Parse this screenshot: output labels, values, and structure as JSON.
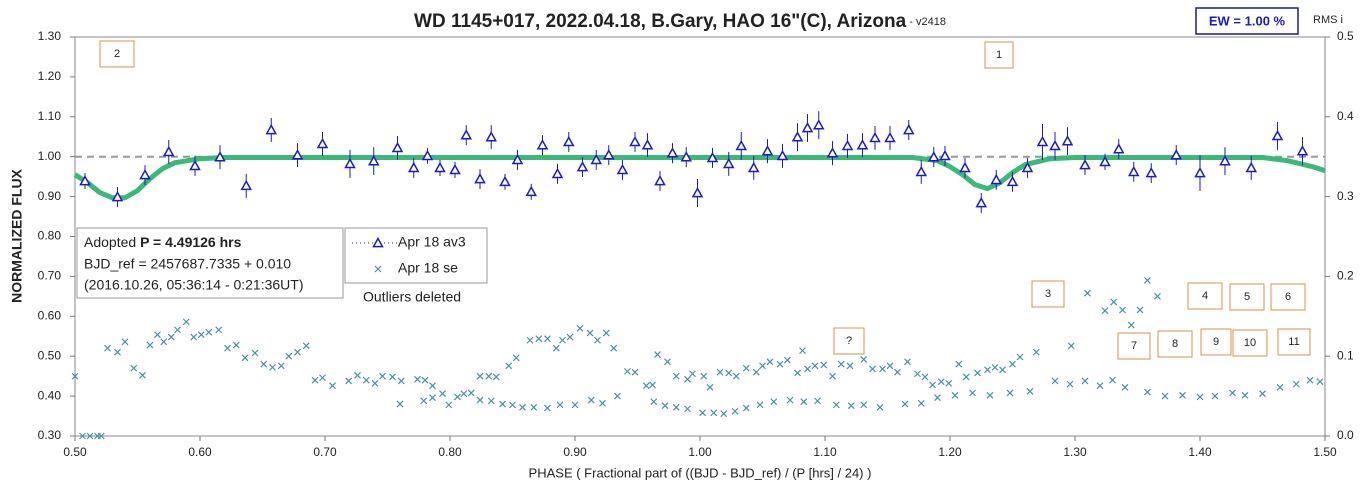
{
  "chart_data": {
    "type": "scatter",
    "title": "WD 1145+017, 2022.04.18, B.Gary, HAO 16\"(C), Arizona",
    "title_suffix": " - v2418",
    "ew_label": "EW = 1.00 %",
    "y2_title": "RMS i",
    "ylabel": "NORMALIZED FLUX",
    "xlabel": "PHASE ( Fractional part of ((BJD - BJD_ref) / (P [hrs] / 24) )",
    "info_lines": {
      "prefix": "Adopted ",
      "period": "P = 4.49126 hrs",
      "line2": "BJD_ref = 2457687.7335 + 0.010",
      "line3": "(2016.10.26, 05:36:14 - 0:21:36UT)"
    },
    "note": "Outliers deleted",
    "annotations": [
      "2",
      "1",
      "3",
      "4",
      "5",
      "6",
      "7",
      "8",
      "9",
      "10",
      "11",
      "?"
    ],
    "xlim": [
      0.5,
      1.5
    ],
    "xticks": [
      {
        "value": 0.5,
        "label": "0.50"
      },
      {
        "value": 0.6,
        "label": "0.60"
      },
      {
        "value": 0.7,
        "label": "0.70"
      },
      {
        "value": 0.8,
        "label": "0.80"
      },
      {
        "value": 0.9,
        "label": "0.90"
      },
      {
        "value": 1.0,
        "label": "1.00"
      },
      {
        "value": 1.1,
        "label": "1.10"
      },
      {
        "value": 1.2,
        "label": "1.20"
      },
      {
        "value": 1.3,
        "label": "1.30"
      },
      {
        "value": 1.4,
        "label": "1.40"
      },
      {
        "value": 1.5,
        "label": "1.50"
      }
    ],
    "ylim": [
      0.3,
      1.3
    ],
    "yticks": [
      {
        "value": 0.3,
        "label": "0.30"
      },
      {
        "value": 0.4,
        "label": "0.40"
      },
      {
        "value": 0.5,
        "label": "0.50"
      },
      {
        "value": 0.6,
        "label": "0.60"
      },
      {
        "value": 0.7,
        "label": "0.70"
      },
      {
        "value": 0.8,
        "label": "0.80"
      },
      {
        "value": 0.9,
        "label": "0.90"
      },
      {
        "value": 1.0,
        "label": "1.00"
      },
      {
        "value": 1.1,
        "label": "1.10"
      },
      {
        "value": 1.2,
        "label": "1.20"
      },
      {
        "value": 1.3,
        "label": "1.30"
      }
    ],
    "y2lim": [
      0,
      0.5
    ],
    "y2ticks": [
      {
        "value": 0,
        "label": "0.0"
      },
      {
        "value": 0.1,
        "label": "0.1"
      },
      {
        "value": 0.2,
        "label": "0.2"
      },
      {
        "value": 0.3,
        "label": "0.3"
      },
      {
        "value": 0.4,
        "label": "0.4"
      },
      {
        "value": 0.5,
        "label": "0.5"
      }
    ],
    "grid": false,
    "reference_line": 1.0,
    "reference_color": "#999999",
    "series": [
      {
        "name": "Apr 18 av3",
        "color": "#1a1acc",
        "marker": "triangle",
        "x": [
          0.508,
          0.534,
          0.556,
          0.575,
          0.596,
          0.616,
          0.637,
          0.657,
          0.678,
          0.698,
          0.72,
          0.739,
          0.758,
          0.771,
          0.782,
          0.792,
          0.804,
          0.813,
          0.824,
          0.833,
          0.844,
          0.854,
          0.865,
          0.874,
          0.886,
          0.895,
          0.906,
          0.917,
          0.927,
          0.938,
          0.948,
          0.958,
          0.968,
          0.978,
          0.989,
          0.998,
          1.01,
          1.023,
          1.033,
          1.043,
          1.054,
          1.066,
          1.078,
          1.086,
          1.095,
          1.106,
          1.118,
          1.13,
          1.14,
          1.152,
          1.167,
          1.177,
          1.187,
          1.196,
          1.212,
          1.225,
          1.237,
          1.25,
          1.262,
          1.274,
          1.284,
          1.294,
          1.308,
          1.324,
          1.335,
          1.347,
          1.361,
          1.381,
          1.4,
          1.42,
          1.441,
          1.462,
          1.482
        ],
        "values": [
          0.939,
          0.899,
          0.954,
          1.012,
          0.977,
          0.999,
          0.927,
          1.067,
          1.004,
          1.032,
          0.982,
          0.989,
          1.022,
          0.972,
          1.002,
          0.972,
          0.967,
          1.054,
          0.944,
          1.049,
          0.937,
          0.992,
          0.912,
          1.029,
          0.957,
          1.037,
          0.974,
          0.992,
          1.004,
          0.967,
          1.037,
          1.029,
          0.939,
          1.009,
          0.999,
          0.909,
          0.997,
          0.982,
          1.027,
          0.972,
          1.014,
          1.002,
          1.049,
          1.072,
          1.079,
          1.009,
          1.027,
          1.029,
          1.047,
          1.047,
          1.067,
          0.962,
          0.999,
          1.002,
          0.972,
          0.884,
          0.942,
          0.937,
          0.972,
          1.037,
          1.027,
          1.039,
          0.979,
          0.987,
          1.019,
          0.962,
          0.959,
          1.004,
          0.959,
          0.989,
          0.972,
          1.052,
          1.014
        ],
        "errors": [
          0.02,
          0.025,
          0.025,
          0.03,
          0.025,
          0.03,
          0.03,
          0.03,
          0.03,
          0.03,
          0.035,
          0.035,
          0.03,
          0.025,
          0.02,
          0.02,
          0.02,
          0.025,
          0.025,
          0.03,
          0.02,
          0.025,
          0.02,
          0.025,
          0.025,
          0.025,
          0.025,
          0.025,
          0.025,
          0.025,
          0.025,
          0.03,
          0.025,
          0.025,
          0.025,
          0.035,
          0.025,
          0.03,
          0.035,
          0.03,
          0.03,
          0.03,
          0.035,
          0.035,
          0.035,
          0.03,
          0.03,
          0.03,
          0.03,
          0.03,
          0.025,
          0.03,
          0.025,
          0.025,
          0.025,
          0.025,
          0.025,
          0.025,
          0.025,
          0.045,
          0.035,
          0.035,
          0.025,
          0.02,
          0.025,
          0.025,
          0.025,
          0.025,
          0.045,
          0.035,
          0.03,
          0.035,
          0.035
        ]
      },
      {
        "name": "Apr 18 se",
        "color": "#4a8fa8",
        "marker": "x",
        "axis": "y2",
        "x": [
          0.5,
          0.506,
          0.512,
          0.518,
          0.521,
          0.526,
          0.534,
          0.54,
          0.547,
          0.554,
          0.56,
          0.566,
          0.571,
          0.577,
          0.582,
          0.589,
          0.595,
          0.601,
          0.607,
          0.615,
          0.622,
          0.629,
          0.636,
          0.644,
          0.651,
          0.658,
          0.665,
          0.671,
          0.678,
          0.685,
          0.692,
          0.698,
          0.706,
          0.719,
          0.726,
          0.733,
          0.74,
          0.746,
          0.754,
          0.761,
          0.76,
          0.774,
          0.78,
          0.786,
          0.779,
          0.786,
          0.794,
          0.799,
          0.806,
          0.811,
          0.817,
          0.824,
          0.831,
          0.837,
          0.824,
          0.833,
          0.842,
          0.85,
          0.858,
          0.867,
          0.878,
          0.847,
          0.853,
          0.864,
          0.871,
          0.878,
          0.885,
          0.89,
          0.896,
          0.904,
          0.912,
          0.918,
          0.925,
          0.931,
          0.888,
          0.9,
          0.913,
          0.922,
          0.934,
          0.942,
          0.948,
          0.957,
          0.962,
          0.966,
          0.974,
          0.981,
          0.99,
          0.994,
          1.003,
          1.008,
          1.016,
          1.023,
          1.029,
          1.037,
          1.045,
          1.05,
          1.056,
          1.064,
          1.07,
          1.078,
          1.082,
          1.086,
          1.092,
          1.099,
          1.106,
          1.113,
          1.12,
          1.131,
          1.138,
          1.146,
          1.152,
          1.158,
          1.166,
          1.174,
          1.18,
          1.186,
          1.193,
          1.199,
          1.207,
          1.213,
          1.222,
          1.23,
          1.236,
          1.242,
          1.25,
          1.256,
          1.269,
          1.297,
          1.31,
          1.324,
          1.331,
          1.338,
          1.345,
          1.352,
          1.358,
          1.366,
          0.963,
          0.972,
          0.981,
          0.99,
          1.002,
          1.011,
          1.019,
          1.028,
          1.037,
          1.048,
          1.059,
          1.072,
          1.083,
          1.094,
          1.109,
          1.121,
          1.131,
          1.144,
          1.164,
          1.177,
          1.19,
          1.204,
          1.218,
          1.232,
          1.248,
          1.264,
          1.284,
          1.296,
          1.308,
          1.32,
          1.33,
          1.34,
          1.358,
          1.372,
          1.386,
          1.4,
          1.412,
          1.426,
          1.436,
          1.45,
          1.464,
          1.477,
          1.488,
          1.496,
          1.477
        ],
        "values": [
          0.075,
          0,
          0,
          0,
          0,
          0.11,
          0.105,
          0.118,
          0.085,
          0.076,
          0.114,
          0.127,
          0.118,
          0.124,
          0.133,
          0.143,
          0.124,
          0.127,
          0.13,
          0.133,
          0.11,
          0.114,
          0.098,
          0.104,
          0.09,
          0.086,
          0.088,
          0.1,
          0.105,
          0.113,
          0.07,
          0.073,
          0.063,
          0.069,
          0.076,
          0.07,
          0.066,
          0.075,
          0.074,
          0.069,
          0.04,
          0.071,
          0.07,
          0.063,
          0.044,
          0.048,
          0.053,
          0.039,
          0.049,
          0.053,
          0.054,
          0.075,
          0.075,
          0.074,
          0.045,
          0.044,
          0.04,
          0.039,
          0.036,
          0.036,
          0.035,
          0.088,
          0.098,
          0.12,
          0.122,
          0.122,
          0.11,
          0.12,
          0.124,
          0.135,
          0.129,
          0.12,
          0.129,
          0.11,
          0.039,
          0.039,
          0.045,
          0.041,
          0.05,
          0.081,
          0.08,
          0.063,
          0.064,
          0.102,
          0.093,
          0.075,
          0.071,
          0.078,
          0.075,
          0.061,
          0.08,
          0.079,
          0.075,
          0.085,
          0.08,
          0.088,
          0.093,
          0.09,
          0.095,
          0.079,
          0.107,
          0.084,
          0.088,
          0.089,
          0.075,
          0.09,
          0.088,
          0.096,
          0.084,
          0.084,
          0.088,
          0.08,
          0.093,
          0.078,
          0.074,
          0.064,
          0.068,
          0.066,
          0.09,
          0.074,
          0.079,
          0.083,
          0.086,
          0.083,
          0.09,
          0.099,
          0.105,
          0.113,
          0.179,
          0.157,
          0.168,
          0.158,
          0.139,
          0.158,
          0.195,
          0.175,
          0.043,
          0.038,
          0.036,
          0.034,
          0.029,
          0.029,
          0.028,
          0.031,
          0.035,
          0.039,
          0.043,
          0.045,
          0.043,
          0.044,
          0.039,
          0.038,
          0.039,
          0.036,
          0.04,
          0.041,
          0.048,
          0.051,
          0.054,
          0.051,
          0.054,
          0.056,
          0.069,
          0.065,
          0.069,
          0.063,
          0.07,
          0.061,
          0.055,
          0.05,
          0.051,
          0.049,
          0.05,
          0.054,
          0.051,
          0.053,
          0.061,
          0.065,
          0.07,
          0.068,
          0.113
        ]
      },
      {
        "color": "#3cb878",
        "marker": "line",
        "x": [
          0.5,
          0.51,
          0.52,
          0.53,
          0.54,
          0.55,
          0.56,
          0.57,
          0.58,
          0.6,
          0.62,
          0.7,
          1.17,
          1.19,
          1.2,
          1.21,
          1.22,
          1.23,
          1.24,
          1.25,
          1.26,
          1.28,
          1.3,
          1.45,
          1.47,
          1.49,
          1.5
        ],
        "values": [
          0.955,
          0.935,
          0.91,
          0.897,
          0.897,
          0.915,
          0.945,
          0.97,
          0.985,
          0.995,
          0.998,
          0.998,
          0.998,
          0.99,
          0.975,
          0.955,
          0.93,
          0.92,
          0.935,
          0.96,
          0.98,
          0.995,
          0.998,
          0.998,
          0.99,
          0.975,
          0.965
        ]
      }
    ]
  }
}
